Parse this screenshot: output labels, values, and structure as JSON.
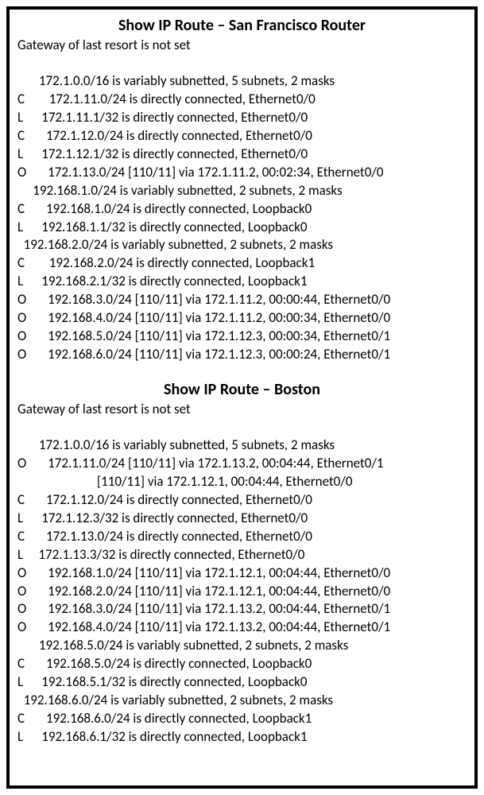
{
  "sf": {
    "title": "Show IP Route – San Francisco Router",
    "gateway": "Gateway of last resort is not set",
    "lines": [
      "       172.1.0.0/16 is variably subnetted, 5 subnets, 2 masks",
      "C        172.1.11.0/24 is directly connected, Ethernet0/0",
      "L      172.1.11.1/32 is directly connected, Ethernet0/0",
      "C       172.1.12.0/24 is directly connected, Ethernet0/0",
      "L      172.1.12.1/32 is directly connected, Ethernet0/0",
      "O       172.1.13.0/24 [110/11] via 172.1.11.2, 00:02:34, Ethernet0/0",
      "     192.168.1.0/24 is variably subnetted, 2 subnets, 2 masks",
      "C       192.168.1.0/24 is directly connected, Loopback0",
      "L      192.168.1.1/32 is directly connected, Loopback0",
      "  192.168.2.0/24 is variably subnetted, 2 subnets, 2 masks",
      "C        192.168.2.0/24 is directly connected, Loopback1",
      "L      192.168.2.1/32 is directly connected, Loopback1",
      "O       192.168.3.0/24 [110/11] via 172.1.11.2, 00:00:44, Ethernet0/0",
      "O       192.168.4.0/24 [110/11] via 172.1.11.2, 00:00:34, Ethernet0/0",
      "O       192.168.5.0/24 [110/11] via 172.1.12.3, 00:00:34, Ethernet0/1",
      "O       192.168.6.0/24 [110/11] via 172.1.12.3, 00:00:24, Ethernet0/1"
    ]
  },
  "boston": {
    "title": "Show IP Route – Boston",
    "gateway": "Gateway of last resort is not set",
    "lines": [
      "       172.1.0.0/16 is variably subnetted, 5 subnets, 2 masks",
      "O       172.1.11.0/24 [110/11] via 172.1.13.2, 00:04:44, Ethernet0/1",
      "                          [110/11] via 172.1.12.1, 00:04:44, Ethernet0/0",
      "C       172.1.12.0/24 is directly connected, Ethernet0/0",
      "L      172.1.12.3/32 is directly connected, Ethernet0/0",
      "C       172.1.13.0/24 is directly connected, Ethernet0/0",
      "L     172.1.13.3/32 is directly connected, Ethernet0/0",
      "O       192.168.1.0/24 [110/11] via 172.1.12.1, 00:04:44, Ethernet0/0",
      "O       192.168.2.0/24 [110/11] via 172.1.12.1, 00:04:44, Ethernet0/0",
      "O       192.168.3.0/24 [110/11] via 172.1.13.2, 00:04:44, Ethernet0/1",
      "O       192.168.4.0/24 [110/11] via 172.1.13.2, 00:04:44, Ethernet0/1",
      "       192.168.5.0/24 is variably subnetted, 2 subnets, 2 masks",
      "C       192.168.5.0/24 is directly connected, Loopback0",
      "L      192.168.5.1/32 is directly connected, Loopback0",
      "  192.168.6.0/24 is variably subnetted, 2 subnets, 2 masks",
      "C       192.168.6.0/24 is directly connected, Loopback1",
      "L      192.168.6.1/32 is directly connected, Loopback1"
    ]
  }
}
